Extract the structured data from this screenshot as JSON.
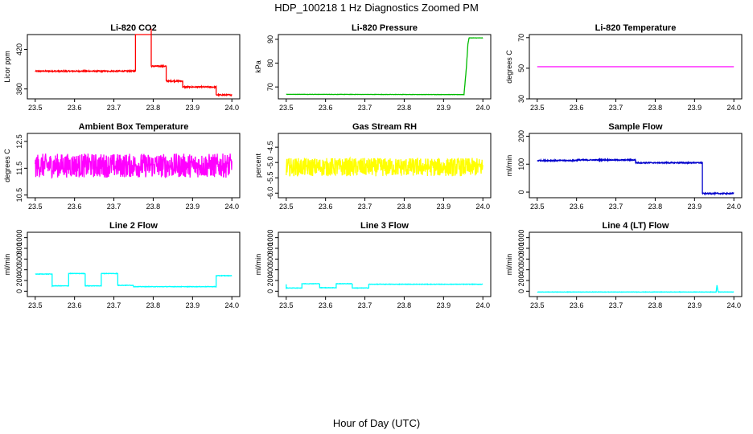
{
  "title": "HDP_100218  1 Hz Diagnostics Zoomed PM",
  "x_axis_label": "Hour of Day (UTC)",
  "chart_data": [
    {
      "type": "line",
      "title": "Li-820 CO2",
      "ylabel": "Licor ppm",
      "color": "#ff0000",
      "xlim": [
        23.5,
        24.0
      ],
      "ylim": [
        370,
        435
      ],
      "xticks": [
        "23.5",
        "23.6",
        "23.7",
        "23.8",
        "23.9",
        "24.0"
      ],
      "yticks": [
        "380",
        "420"
      ],
      "noise": 0.6,
      "x": [
        23.5,
        23.755,
        23.755,
        23.795,
        23.795,
        23.833,
        23.833,
        23.875,
        23.875,
        23.96,
        23.96,
        24.0
      ],
      "y": [
        398,
        398,
        441,
        441,
        403,
        403,
        388,
        388,
        382,
        382,
        374,
        374
      ]
    },
    {
      "type": "line",
      "title": "Li-820 Pressure",
      "ylabel": "kPa",
      "color": "#00bb00",
      "xlim": [
        23.5,
        24.0
      ],
      "ylim": [
        65,
        92
      ],
      "xticks": [
        "23.5",
        "23.6",
        "23.7",
        "23.8",
        "23.9",
        "24.0"
      ],
      "yticks": [
        "70",
        "80",
        "90"
      ],
      "noise": 0.05,
      "x": [
        23.5,
        23.952,
        23.958,
        23.962,
        23.965,
        24.0
      ],
      "y": [
        66.9,
        66.8,
        78,
        88,
        90.6,
        90.6
      ]
    },
    {
      "type": "line",
      "title": "Li-820 Temperature",
      "ylabel": "degrees C",
      "color": "#ff00ff",
      "xlim": [
        23.5,
        24.0
      ],
      "ylim": [
        30,
        72
      ],
      "xticks": [
        "23.5",
        "23.6",
        "23.7",
        "23.8",
        "23.9",
        "24.0"
      ],
      "yticks": [
        "30",
        "50",
        "70"
      ],
      "noise": 0,
      "x": [
        23.5,
        24.0
      ],
      "y": [
        51,
        51
      ]
    },
    {
      "type": "line",
      "title": "Ambient Box Temperature",
      "ylabel": "degrees C",
      "color": "#ff00ff",
      "xlim": [
        23.5,
        24.0
      ],
      "ylim": [
        10.4,
        12.8
      ],
      "xticks": [
        "23.5",
        "23.6",
        "23.7",
        "23.8",
        "23.9",
        "24.0"
      ],
      "yticks": [
        "10.5",
        "11.5",
        "12.5"
      ],
      "noise": 0.45,
      "x": [
        23.5,
        24.0
      ],
      "y": [
        11.6,
        11.6
      ]
    },
    {
      "type": "line",
      "title": "Gas Stream RH",
      "ylabel": "percent",
      "color": "#ffff00",
      "xlim": [
        23.5,
        24.0
      ],
      "ylim": [
        -6.15,
        -4.05
      ],
      "xticks": [
        "23.5",
        "23.6",
        "23.7",
        "23.8",
        "23.9",
        "24.0"
      ],
      "yticks": [
        "-6.0",
        "-5.5",
        "-5.0",
        "-4.5"
      ],
      "noise": 0.3,
      "x": [
        23.5,
        24.0
      ],
      "y": [
        -5.15,
        -5.15
      ]
    },
    {
      "type": "line",
      "title": "Sample Flow",
      "ylabel": "ml/min",
      "color": "#0000cc",
      "xlim": [
        23.5,
        24.0
      ],
      "ylim": [
        -20,
        210
      ],
      "xticks": [
        "23.5",
        "23.6",
        "23.7",
        "23.8",
        "23.9",
        "24.0"
      ],
      "yticks": [
        "0",
        "100",
        "200"
      ],
      "noise": 2,
      "x": [
        23.5,
        23.6,
        23.6,
        23.75,
        23.75,
        23.92,
        23.92,
        24.0
      ],
      "y": [
        113,
        113,
        115,
        115,
        105,
        105,
        -5,
        -5
      ]
    },
    {
      "type": "line",
      "title": "Line 2 Flow",
      "ylabel": "ml/min",
      "color": "#00ffff",
      "xlim": [
        23.5,
        24.0
      ],
      "ylim": [
        -100,
        1100
      ],
      "xticks": [
        "23.5",
        "23.6",
        "23.7",
        "23.8",
        "23.9",
        "24.0"
      ],
      "yticks": [
        "0",
        "200",
        "400",
        "600",
        "800",
        "1000"
      ],
      "noise": 4,
      "x": [
        23.5,
        23.543,
        23.543,
        23.585,
        23.585,
        23.627,
        23.627,
        23.668,
        23.668,
        23.71,
        23.71,
        23.75,
        23.75,
        23.96,
        23.96,
        24.0
      ],
      "y": [
        320,
        320,
        100,
        100,
        330,
        330,
        100,
        100,
        330,
        330,
        110,
        110,
        85,
        85,
        290,
        290
      ]
    },
    {
      "type": "line",
      "title": "Line 3 Flow",
      "ylabel": "ml/min",
      "color": "#00ffff",
      "xlim": [
        23.5,
        24.0
      ],
      "ylim": [
        -100,
        1100
      ],
      "xticks": [
        "23.5",
        "23.6",
        "23.7",
        "23.8",
        "23.9",
        "24.0"
      ],
      "yticks": [
        "0",
        "200",
        "400",
        "600",
        "800",
        "1000"
      ],
      "noise": 4,
      "x": [
        23.5,
        23.5,
        23.54,
        23.54,
        23.585,
        23.585,
        23.627,
        23.627,
        23.668,
        23.668,
        23.71,
        23.71,
        24.0
      ],
      "y": [
        130,
        60,
        60,
        140,
        140,
        65,
        65,
        140,
        140,
        60,
        60,
        130,
        130
      ]
    },
    {
      "type": "line",
      "title": "Line 4 (LT) Flow",
      "ylabel": "ml/min",
      "color": "#00ffff",
      "xlim": [
        23.5,
        24.0
      ],
      "ylim": [
        -100,
        1100
      ],
      "xticks": [
        "23.5",
        "23.6",
        "23.7",
        "23.8",
        "23.9",
        "24.0"
      ],
      "yticks": [
        "0",
        "200",
        "400",
        "600",
        "800",
        "1000"
      ],
      "noise": 3,
      "x": [
        23.5,
        23.955,
        23.957,
        23.96,
        23.962,
        24.0
      ],
      "y": [
        -15,
        -15,
        110,
        -15,
        -15,
        -15
      ]
    }
  ]
}
